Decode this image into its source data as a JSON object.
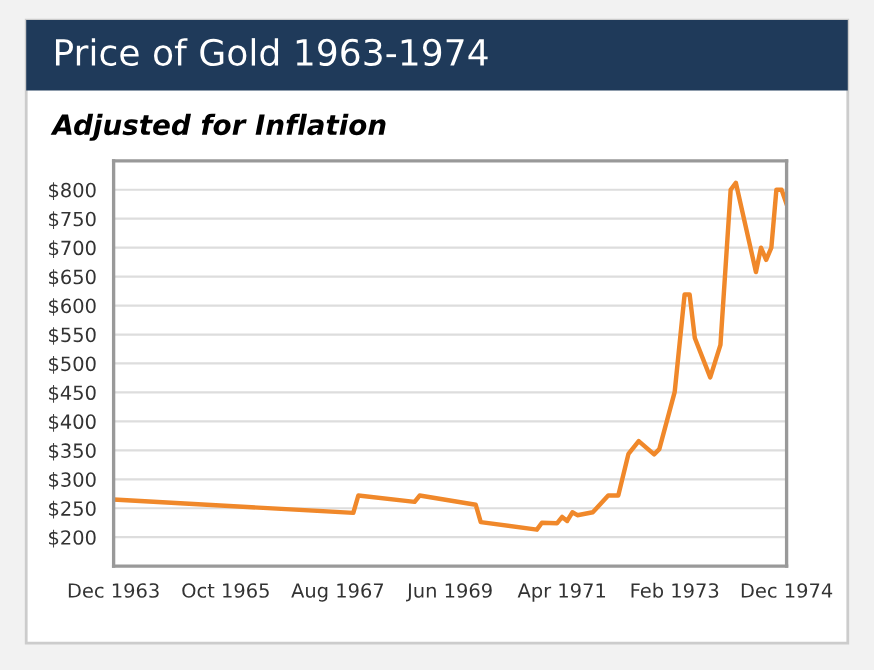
{
  "chart_data": {
    "type": "line",
    "title": "Price of Gold 1963-1974",
    "subtitle": "Adjusted for Inflation",
    "x": [
      "1963-12",
      "1967-11",
      "1967-12",
      "1968-11",
      "1968-12",
      "1969-11",
      "1969-12",
      "1970-11",
      "1970-12",
      "1971-03",
      "1971-04",
      "1971-05",
      "1971-06",
      "1971-07",
      "1971-10",
      "1972-01",
      "1972-03",
      "1972-05",
      "1972-07",
      "1972-10",
      "1972-11",
      "1973-02",
      "1973-04",
      "1973-05",
      "1973-06",
      "1973-09",
      "1973-11",
      "1974-01",
      "1974-02",
      "1974-06",
      "1974-07",
      "1974-08",
      "1974-09",
      "1974-10",
      "1974-11",
      "1974-12"
    ],
    "series": [
      {
        "color": "#f0882a",
        "values": [
          265,
          242,
          272,
          261,
          272,
          256,
          226,
          213,
          225,
          224,
          235,
          228,
          243,
          238,
          243,
          272,
          272,
          344,
          366,
          343,
          352,
          451,
          619,
          619,
          544,
          476,
          532,
          800,
          812,
          658,
          700,
          679,
          700,
          800,
          800,
          775
        ]
      }
    ],
    "xlim": [
      "1963-12",
      "1974-12"
    ],
    "xticks": [
      {
        "value": "1963-12",
        "label": "Dec 1963"
      },
      {
        "value": "1965-10",
        "label": "Oct 1965"
      },
      {
        "value": "1967-08",
        "label": "Aug 1967"
      },
      {
        "value": "1969-06",
        "label": "Jun 1969"
      },
      {
        "value": "1971-04",
        "label": "Apr 1971"
      },
      {
        "value": "1973-02",
        "label": "Feb 1973"
      },
      {
        "value": "1974-12",
        "label": "Dec 1974"
      }
    ],
    "ylim": [
      150,
      850
    ],
    "yticks": [
      {
        "value": 200,
        "label": "$200"
      },
      {
        "value": 250,
        "label": "$250"
      },
      {
        "value": 300,
        "label": "$300"
      },
      {
        "value": 350,
        "label": "$350"
      },
      {
        "value": 400,
        "label": "$400"
      },
      {
        "value": 450,
        "label": "$450"
      },
      {
        "value": 500,
        "label": "$500"
      },
      {
        "value": 550,
        "label": "$550"
      },
      {
        "value": 600,
        "label": "$600"
      },
      {
        "value": 650,
        "label": "$650"
      },
      {
        "value": 700,
        "label": "$700"
      },
      {
        "value": 750,
        "label": "$750"
      },
      {
        "value": 800,
        "label": "$800"
      }
    ],
    "grid": "y",
    "marker": "none",
    "line_style": "solid"
  }
}
